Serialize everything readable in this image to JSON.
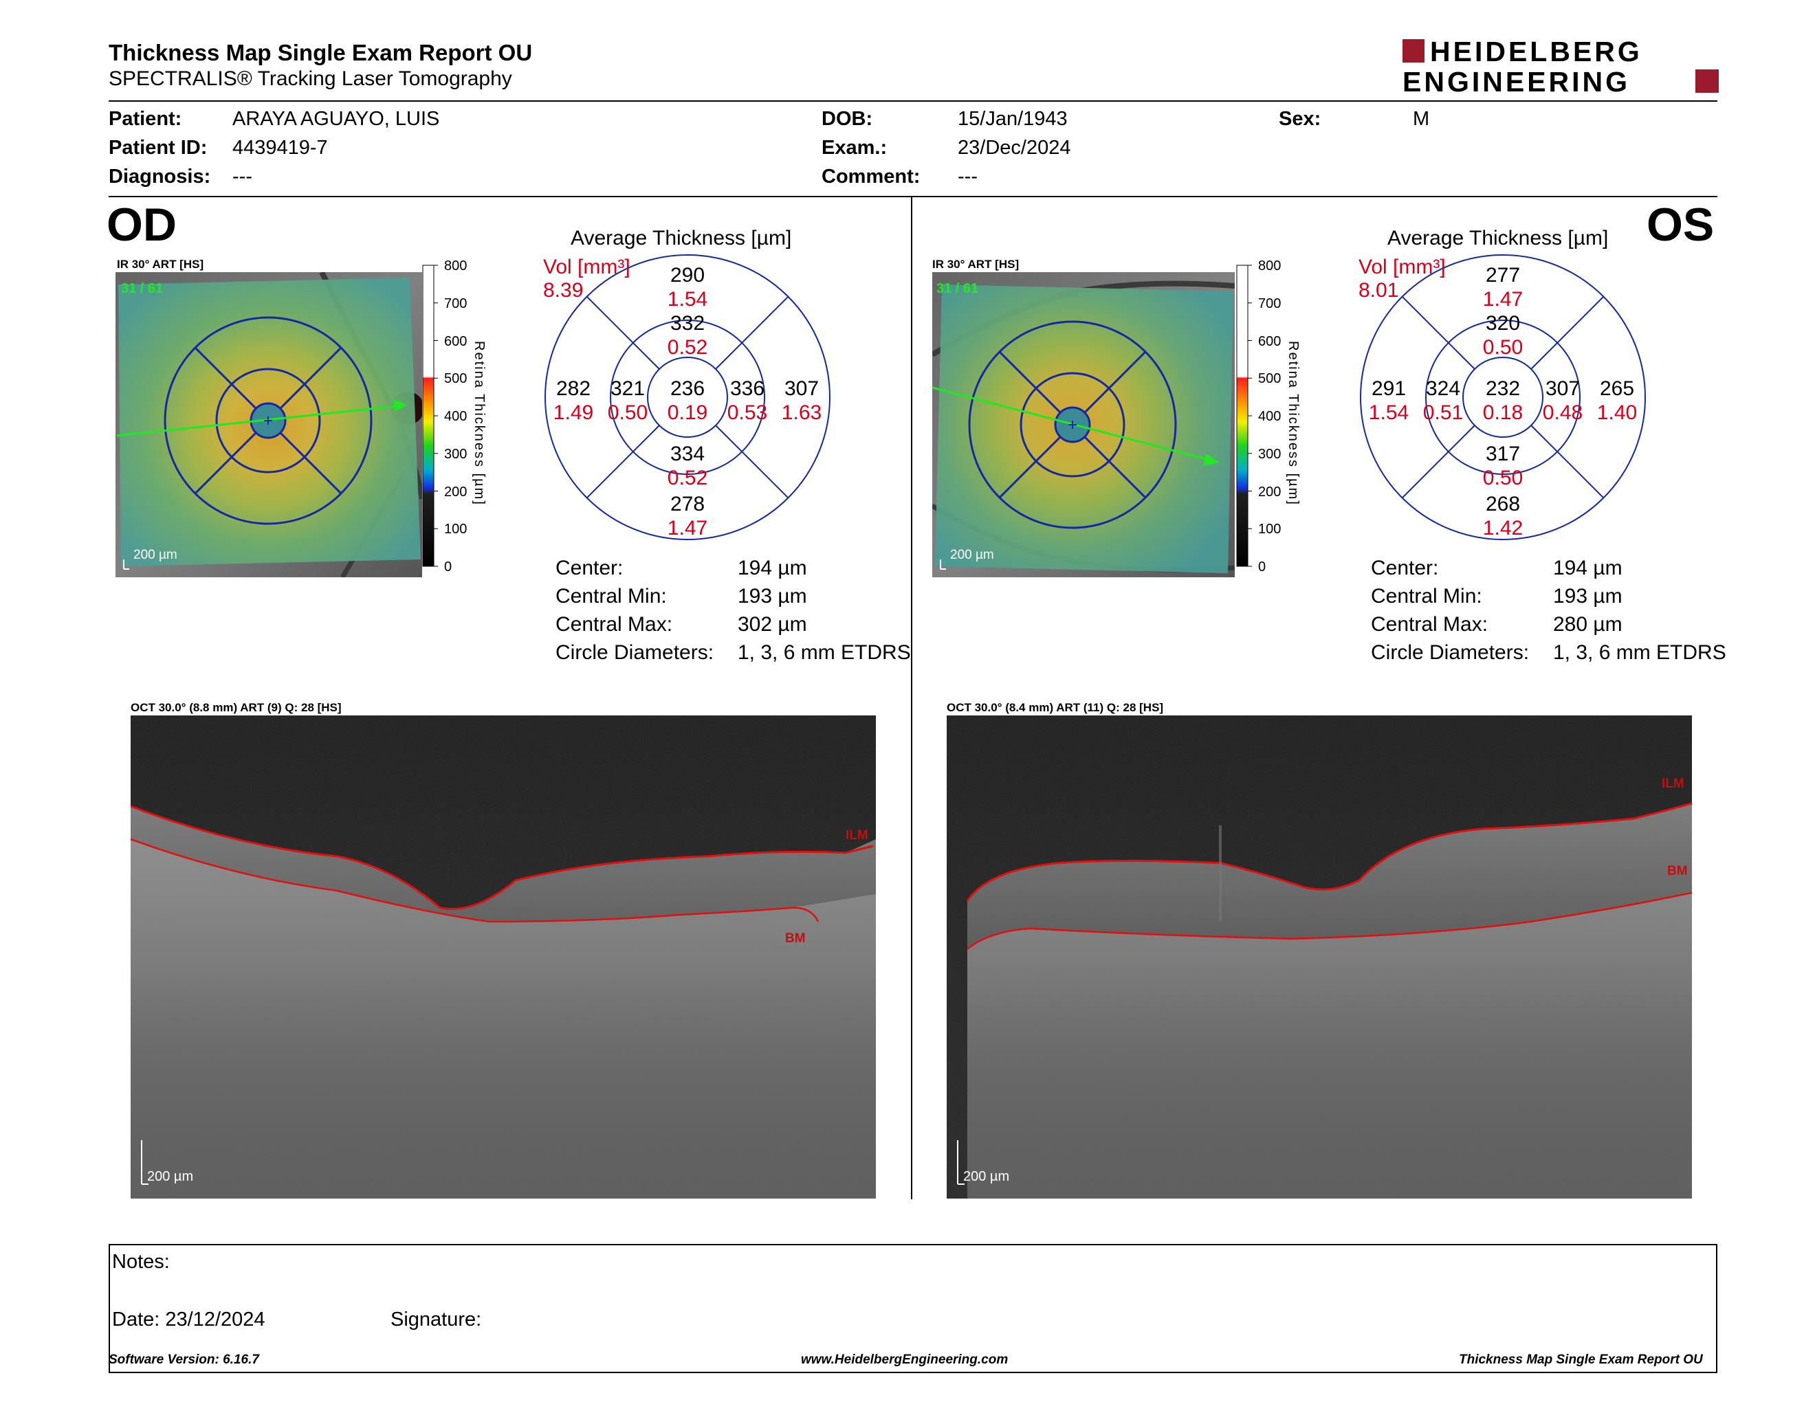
{
  "report": {
    "title": "Thickness Map Single Exam Report OU",
    "subtitle": "SPECTRALIS® Tracking Laser Tomography",
    "logo_line1": "HEIDELBERG",
    "logo_line2": "ENGINEERING"
  },
  "patient": {
    "patient_label": "Patient:",
    "patient_value": "ARAYA AGUAYO, LUIS",
    "id_label": "Patient ID:",
    "id_value": "4439419-7",
    "diagnosis_label": "Diagnosis:",
    "diagnosis_value": "---",
    "dob_label": "DOB:",
    "dob_value": "15/Jan/1943",
    "exam_label": "Exam.:",
    "exam_value": "23/Dec/2024",
    "comment_label": "Comment:",
    "comment_value": "---",
    "sex_label": "Sex:",
    "sex_value": "M"
  },
  "od": {
    "eye": "OD",
    "ir_label": "IR 30° ART [HS]",
    "ir_counter": "31 / 61",
    "ir_scale": "200 µm",
    "colorbar_ticks": [
      "800",
      "700",
      "600",
      "500",
      "400",
      "300",
      "200",
      "100",
      "0"
    ],
    "colorbar_title": "Retina Thickness [µm]",
    "avg_title": "Average Thickness [µm]",
    "vol_label": "Vol [mm³]",
    "vol_total": "8.39",
    "grid": {
      "center": {
        "t": "236",
        "v": "0.19"
      },
      "inner_sup": {
        "t": "332",
        "v": "0.52"
      },
      "inner_inf": {
        "t": "334",
        "v": "0.52"
      },
      "inner_left": {
        "t": "321",
        "v": "0.50"
      },
      "inner_right": {
        "t": "336",
        "v": "0.53"
      },
      "outer_sup": {
        "t": "290",
        "v": "1.54"
      },
      "outer_inf": {
        "t": "278",
        "v": "1.47"
      },
      "outer_left": {
        "t": "282",
        "v": "1.49"
      },
      "outer_right": {
        "t": "307",
        "v": "1.63"
      }
    },
    "stats": [
      {
        "label": "Center:",
        "value": "194 µm"
      },
      {
        "label": "Central Min:",
        "value": "193 µm"
      },
      {
        "label": "Central Max:",
        "value": "302 µm"
      },
      {
        "label": "Circle Diameters:",
        "value": "1, 3, 6 mm ETDRS"
      }
    ],
    "oct_label": "OCT 30.0° (8.8 mm) ART (9) Q: 28 [HS]",
    "oct_scale": "200 µm",
    "ilm": "ILM",
    "bm": "BM"
  },
  "os": {
    "eye": "OS",
    "ir_label": "IR 30° ART [HS]",
    "ir_counter": "31 / 61",
    "ir_scale": "200 µm",
    "colorbar_ticks": [
      "800",
      "700",
      "600",
      "500",
      "400",
      "300",
      "200",
      "100",
      "0"
    ],
    "colorbar_title": "Retina Thickness [µm]",
    "avg_title": "Average Thickness [µm]",
    "vol_label": "Vol [mm³]",
    "vol_total": "8.01",
    "grid": {
      "center": {
        "t": "232",
        "v": "0.18"
      },
      "inner_sup": {
        "t": "320",
        "v": "0.50"
      },
      "inner_inf": {
        "t": "317",
        "v": "0.50"
      },
      "inner_left": {
        "t": "324",
        "v": "0.51"
      },
      "inner_right": {
        "t": "307",
        "v": "0.48"
      },
      "outer_sup": {
        "t": "277",
        "v": "1.47"
      },
      "outer_inf": {
        "t": "268",
        "v": "1.42"
      },
      "outer_left": {
        "t": "291",
        "v": "1.54"
      },
      "outer_right": {
        "t": "265",
        "v": "1.40"
      }
    },
    "stats": [
      {
        "label": "Center:",
        "value": "194 µm"
      },
      {
        "label": "Central Min:",
        "value": "193 µm"
      },
      {
        "label": "Central Max:",
        "value": "280 µm"
      },
      {
        "label": "Circle Diameters:",
        "value": "1, 3, 6 mm ETDRS"
      }
    ],
    "oct_label": "OCT 30.0° (8.4 mm) ART (11) Q: 28 [HS]",
    "oct_scale": "200 µm",
    "ilm": "ILM",
    "bm": "BM"
  },
  "notes": {
    "notes_label": "Notes:",
    "date_label": "Date: 23/12/2024",
    "signature_label": "Signature:"
  },
  "footer": {
    "software": "Software Version: 6.16.7",
    "website": "www.HeidelbergEngineering.com",
    "report_name": "Thickness Map Single Exam Report OU"
  },
  "colors": {
    "grid_blue": "#1428a0",
    "volume_red": "#d9001b",
    "logo_red": "#9b1b2c",
    "layer_red": "#e01010",
    "scan_green": "#22e822"
  }
}
